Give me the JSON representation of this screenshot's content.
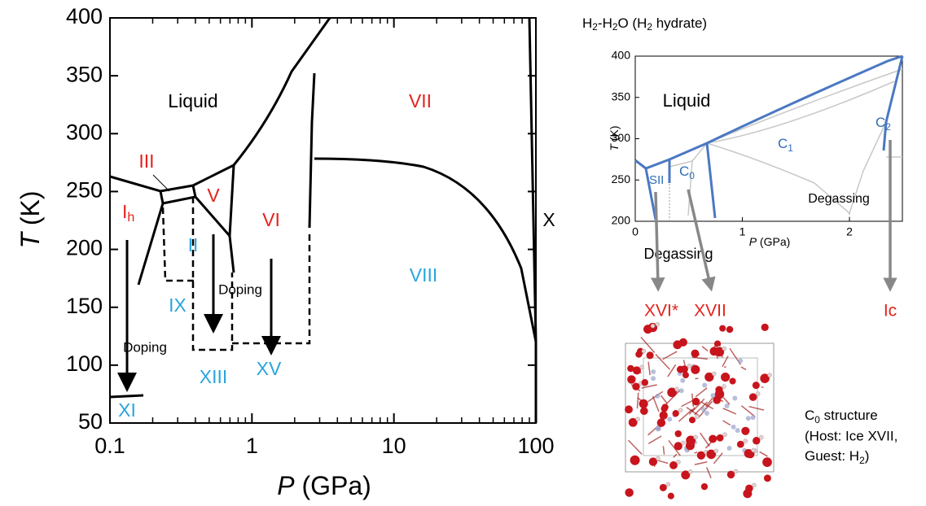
{
  "main_plot": {
    "y_label": {
      "italic": "T",
      "rest": " (K)"
    },
    "x_label": {
      "italic": "P",
      "rest": " (GPa)"
    },
    "yticks": [
      "400",
      "350",
      "300",
      "250",
      "200",
      "150",
      "100",
      "50"
    ],
    "xticks": [
      "0.1",
      "1",
      "10",
      "100"
    ],
    "phases": {
      "liquid": "Liquid",
      "vii": "VII",
      "iii": "III",
      "v": "V",
      "ih": {
        "main": "I",
        "sub": "h"
      },
      "vi": "VI",
      "ii": "II",
      "viii": "VIII",
      "x": "X",
      "ix": "IX",
      "xiii": "XIII",
      "xv": "XV",
      "xi": "XI"
    },
    "doping": [
      "Doping",
      "Doping"
    ]
  },
  "inset": {
    "title": [
      "H",
      "2",
      "-H",
      "2",
      "O (H",
      "2",
      " hydrate)"
    ],
    "y_label": {
      "italic": "T",
      "rest": " (K)"
    },
    "x_label": {
      "italic": "P",
      "rest": " (GPa)"
    },
    "yticks": [
      "400",
      "350",
      "300",
      "250",
      "200"
    ],
    "xticks": [
      "0",
      "1",
      "2"
    ],
    "phases": {
      "liquid": "Liquid",
      "c1": {
        "main": "C",
        "sub": "1"
      },
      "c2": {
        "main": "C",
        "sub": "2"
      },
      "c0": {
        "main": "C",
        "sub": "0"
      },
      "sii": "SII",
      "degassing": "Degassing"
    },
    "degassing_below": "Degassing"
  },
  "products": [
    "XVI*",
    "XVII",
    "Ic"
  ],
  "structure_caption": {
    "line1": {
      "main": "C",
      "sub": "0",
      "rest": " structure"
    },
    "line2": "(Host: Ice XVII,",
    "line3": {
      "main": "Guest: H",
      "sub": "2",
      "rest": ")"
    }
  }
}
